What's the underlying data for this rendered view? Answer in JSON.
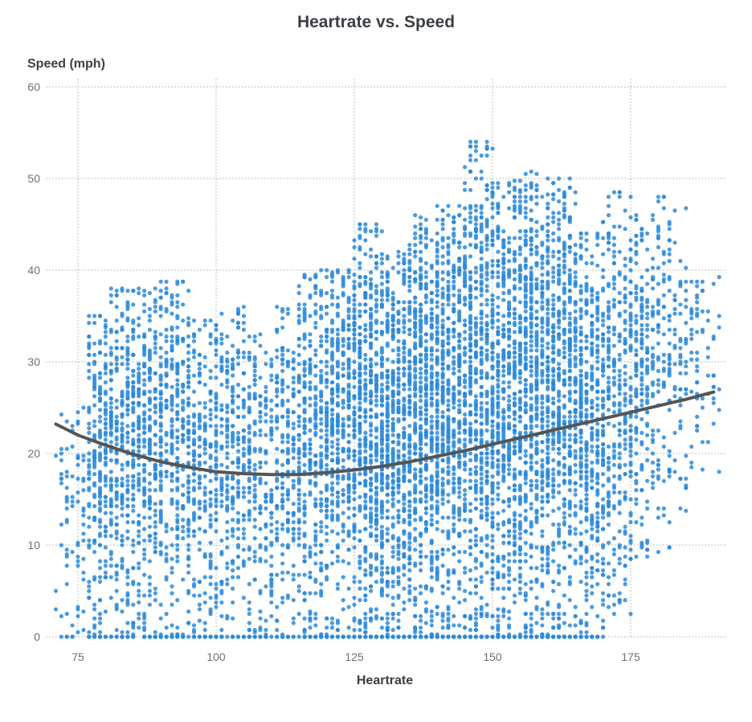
{
  "chart_data": {
    "type": "scatter",
    "title": "Heartrate vs. Speed",
    "xlabel": "Heartrate",
    "ylabel": "Speed (mph)",
    "xlim": [
      70,
      192
    ],
    "ylim": [
      0,
      60
    ],
    "x_ticks": [
      "75",
      "100",
      "125",
      "150",
      "175"
    ],
    "y_ticks": [
      "0",
      "10",
      "20",
      "30",
      "40",
      "50",
      "60"
    ],
    "grid": true,
    "point_color": "#2d8ad8",
    "trend_color": "#555555",
    "point_count": 9000,
    "trend_line": {
      "x": [
        71,
        75,
        80,
        85,
        90,
        95,
        100,
        105,
        110,
        115,
        120,
        125,
        130,
        135,
        140,
        145,
        150,
        155,
        160,
        165,
        170,
        175,
        180,
        185,
        190
      ],
      "y": [
        23.2,
        22.0,
        20.9,
        19.9,
        19.1,
        18.5,
        18.0,
        17.8,
        17.7,
        17.7,
        17.9,
        18.2,
        18.6,
        19.1,
        19.7,
        20.3,
        21.0,
        21.7,
        22.4,
        23.1,
        23.8,
        24.5,
        25.2,
        25.9,
        26.7
      ]
    },
    "density": [
      {
        "x": [
          71,
          77
        ],
        "y": [
          0,
          25
        ],
        "weight": 0.15
      },
      {
        "x": [
          77,
          80
        ],
        "y": [
          0,
          35
        ],
        "weight": 0.35
      },
      {
        "x": [
          80,
          85
        ],
        "y": [
          0,
          38
        ],
        "weight": 0.6
      },
      {
        "x": [
          85,
          90
        ],
        "y": [
          0,
          38
        ],
        "weight": 0.6
      },
      {
        "x": [
          90,
          95
        ],
        "y": [
          0,
          39
        ],
        "weight": 0.55
      },
      {
        "x": [
          95,
          100
        ],
        "y": [
          0,
          35
        ],
        "weight": 0.45
      },
      {
        "x": [
          100,
          105
        ],
        "y": [
          0,
          36
        ],
        "weight": 0.45
      },
      {
        "x": [
          105,
          110
        ],
        "y": [
          0,
          33
        ],
        "weight": 0.4
      },
      {
        "x": [
          110,
          115
        ],
        "y": [
          0,
          36
        ],
        "weight": 0.45
      },
      {
        "x": [
          115,
          120
        ],
        "y": [
          0,
          41
        ],
        "weight": 0.6
      },
      {
        "x": [
          120,
          125
        ],
        "y": [
          0,
          40
        ],
        "weight": 0.75
      },
      {
        "x": [
          125,
          130
        ],
        "y": [
          0,
          45
        ],
        "weight": 0.95
      },
      {
        "x": [
          130,
          135
        ],
        "y": [
          0,
          42
        ],
        "weight": 1.0
      },
      {
        "x": [
          135,
          140
        ],
        "y": [
          0,
          46
        ],
        "weight": 1.0
      },
      {
        "x": [
          140,
          145
        ],
        "y": [
          0,
          47
        ],
        "weight": 1.0
      },
      {
        "x": [
          145,
          150
        ],
        "y": [
          0,
          54
        ],
        "weight": 1.0
      },
      {
        "x": [
          150,
          155
        ],
        "y": [
          0,
          50
        ],
        "weight": 1.0
      },
      {
        "x": [
          155,
          160
        ],
        "y": [
          0,
          51
        ],
        "weight": 1.0
      },
      {
        "x": [
          160,
          165
        ],
        "y": [
          0,
          50
        ],
        "weight": 0.95
      },
      {
        "x": [
          165,
          170
        ],
        "y": [
          0,
          44
        ],
        "weight": 0.8
      },
      {
        "x": [
          170,
          175
        ],
        "y": [
          2,
          49
        ],
        "weight": 0.55
      },
      {
        "x": [
          175,
          180
        ],
        "y": [
          8,
          46
        ],
        "weight": 0.4
      },
      {
        "x": [
          180,
          185
        ],
        "y": [
          9,
          48
        ],
        "weight": 0.25
      },
      {
        "x": [
          185,
          191
        ],
        "y": [
          18,
          40
        ],
        "weight": 0.12
      }
    ]
  }
}
